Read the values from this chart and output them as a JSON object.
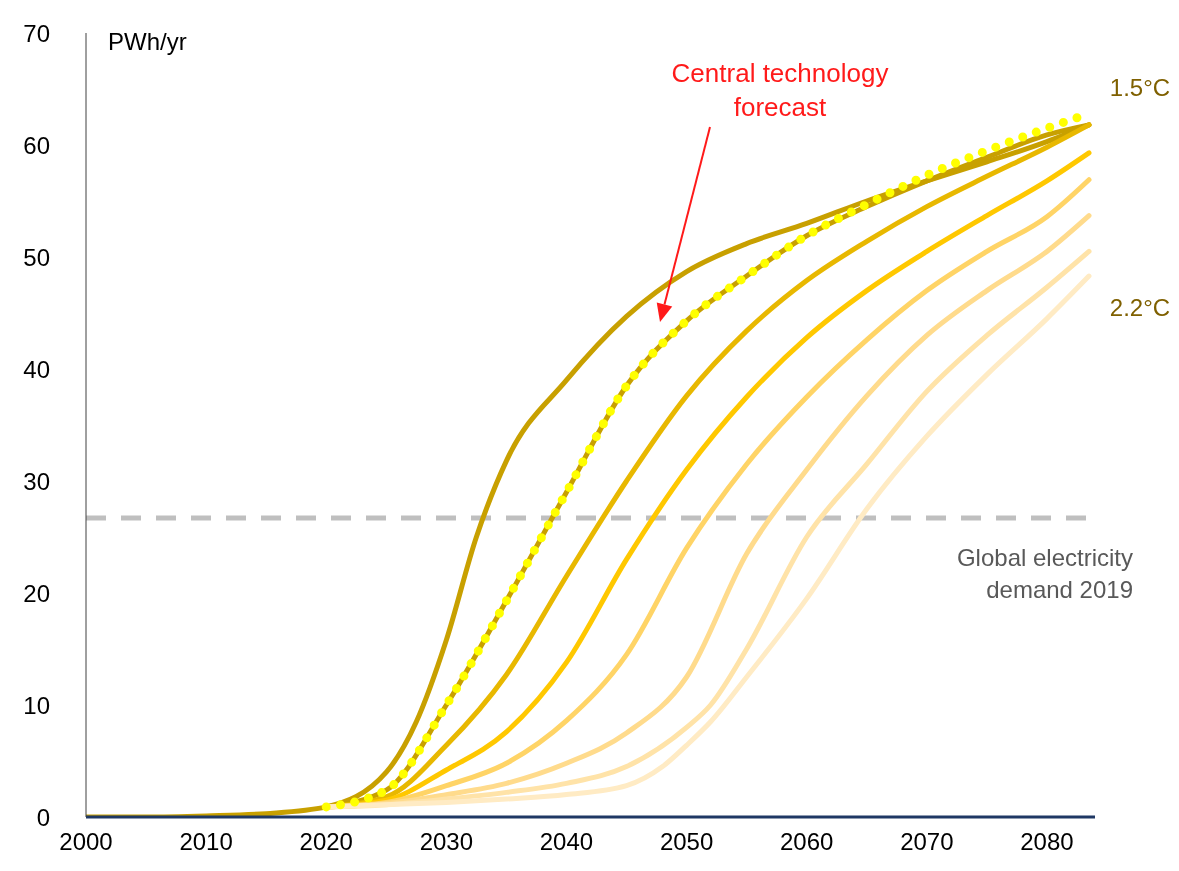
{
  "chart_data": {
    "type": "line",
    "ylabel": "PWh/yr",
    "xlim": [
      2000,
      2084
    ],
    "xticks": [
      2000,
      2010,
      2020,
      2030,
      2040,
      2050,
      2060,
      2070,
      2080
    ],
    "ylim": [
      0,
      70
    ],
    "yticks": [
      0,
      10,
      20,
      30,
      40,
      50,
      60,
      70
    ],
    "grid": false,
    "marker": "none",
    "line_style": "solid",
    "series": [
      {
        "color": "#c8a000",
        "x": [
          2000,
          2005,
          2010,
          2015,
          2020,
          2025,
          2027.5,
          2030,
          2032.5,
          2035,
          2040,
          2045,
          2050,
          2055,
          2060,
          2065,
          2070,
          2075,
          2080,
          2083.5
        ],
        "values": [
          0,
          0,
          0.1,
          0.3,
          0.9,
          4,
          8.5,
          15.8,
          25,
          31.8,
          39,
          44.7,
          48.7,
          51.2,
          53,
          55,
          56.8,
          58.5,
          60.3,
          61.8
        ]
      },
      {
        "color": "#c8a000",
        "x": [
          2020,
          2025,
          2030,
          2035,
          2040,
          2045,
          2050,
          2055,
          2060,
          2065,
          2070,
          2075,
          2080,
          2083.5
        ],
        "values": [
          0.9,
          2.4,
          10,
          19.3,
          29,
          38.5,
          44.3,
          48.3,
          51.9,
          54.5,
          56.8,
          58.9,
          60.9,
          61.8
        ]
      },
      {
        "color": "#e8b800",
        "x": [
          2020,
          2025,
          2030,
          2035,
          2040,
          2045,
          2050,
          2055,
          2060,
          2065,
          2070,
          2075,
          2080,
          2083.5
        ],
        "values": [
          0.9,
          1.8,
          6.4,
          12.7,
          21.5,
          30,
          37.6,
          43.4,
          47.9,
          51.4,
          54.5,
          57.2,
          59.8,
          61.8
        ]
      },
      {
        "color": "#ffc800",
        "x": [
          2020,
          2025,
          2030,
          2035,
          2040,
          2045,
          2050,
          2055,
          2060,
          2065,
          2070,
          2075,
          2080,
          2083.5
        ],
        "values": [
          0.9,
          1.5,
          4.2,
          7.6,
          13.8,
          23,
          31,
          37.5,
          42.8,
          47,
          50.5,
          53.7,
          56.8,
          59.3
        ]
      },
      {
        "color": "#ffd466",
        "x": [
          2020,
          2025,
          2030,
          2035,
          2040,
          2045,
          2050,
          2055,
          2060,
          2065,
          2070,
          2075,
          2080,
          2083.5
        ],
        "values": [
          0.9,
          1.3,
          2.8,
          4.8,
          8.6,
          14.5,
          24,
          31.5,
          37.5,
          42.6,
          47,
          50.5,
          53.6,
          56.9
        ]
      },
      {
        "color": "#ffdb8c",
        "x": [
          2020,
          2025,
          2030,
          2035,
          2040,
          2045,
          2050,
          2055,
          2060,
          2065,
          2070,
          2075,
          2080,
          2083.5
        ],
        "values": [
          0.9,
          1.2,
          2,
          3,
          4.8,
          7.5,
          12.5,
          23.5,
          31,
          37.6,
          43,
          47,
          50.5,
          53.7
        ]
      },
      {
        "color": "#ffe3a8",
        "x": [
          2020,
          2025,
          2030,
          2035,
          2040,
          2045,
          2050,
          2052,
          2055,
          2060,
          2065,
          2070,
          2075,
          2080,
          2083.5
        ],
        "values": [
          0.9,
          1.1,
          1.6,
          2.2,
          3,
          4.5,
          8,
          10,
          15,
          25,
          31.5,
          38,
          43,
          47.3,
          50.5
        ]
      },
      {
        "color": "#ffebc4",
        "x": [
          2020,
          2025,
          2030,
          2035,
          2040,
          2045,
          2048,
          2050,
          2052,
          2055,
          2060,
          2065,
          2070,
          2075,
          2080,
          2083.5
        ],
        "values": [
          0.9,
          1.1,
          1.3,
          1.6,
          2,
          2.8,
          4.5,
          6.4,
          8.5,
          12.5,
          19.5,
          27.5,
          34,
          39.5,
          44.5,
          48.3
        ]
      },
      {
        "color": "#ffff00",
        "line_style": "dotted",
        "x": [
          2020,
          2025,
          2030,
          2035,
          2040,
          2045,
          2050,
          2055,
          2060,
          2065,
          2070,
          2075,
          2080,
          2083.5
        ],
        "values": [
          0.9,
          2.4,
          10,
          19.3,
          29,
          38.5,
          44.3,
          48.3,
          51.9,
          54.7,
          57.3,
          59.5,
          61.5,
          62.8
        ]
      }
    ],
    "ref_lines": [
      {
        "axis": "y",
        "value": 26.7,
        "label": "Global electricity demand 2019",
        "color": "#bfbfbf",
        "line_style": "dashed"
      }
    ],
    "annotations": [
      "Central technology forecast",
      "1.5°C",
      "2.2°C"
    ]
  }
}
